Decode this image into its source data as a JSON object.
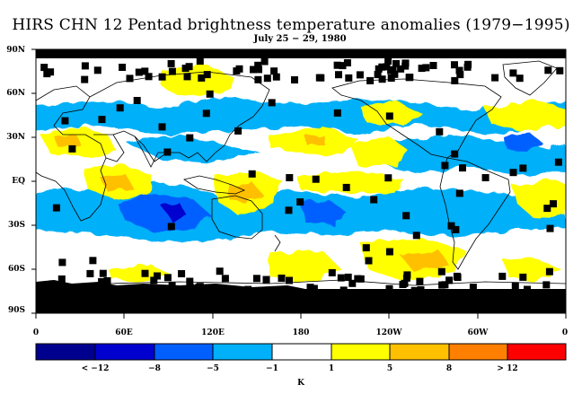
{
  "title": "HIRS CHN 12 Pentad brightness temperature anomalies (1979−1995)",
  "subtitle": "July 25 − 29, 1980",
  "lat_labels": [
    "90N",
    "60N",
    "30N",
    "EQ",
    "30S",
    "60S",
    "90S"
  ],
  "lon_labels": [
    "0",
    "60E",
    "120E",
    "180",
    "120W",
    "60W",
    "0"
  ],
  "colorbar": {
    "colors": [
      "#00008f",
      "#0000cf",
      "#0060ff",
      "#00b0f8",
      "#ffffff",
      "#ffff00",
      "#ffc000",
      "#ff8000",
      "#ff0000"
    ],
    "labels": [
      "< −12",
      "−8",
      "−5",
      "−1",
      "1",
      "5",
      "8",
      "> 12"
    ],
    "unit": "K"
  },
  "missing_color": "#000000"
}
